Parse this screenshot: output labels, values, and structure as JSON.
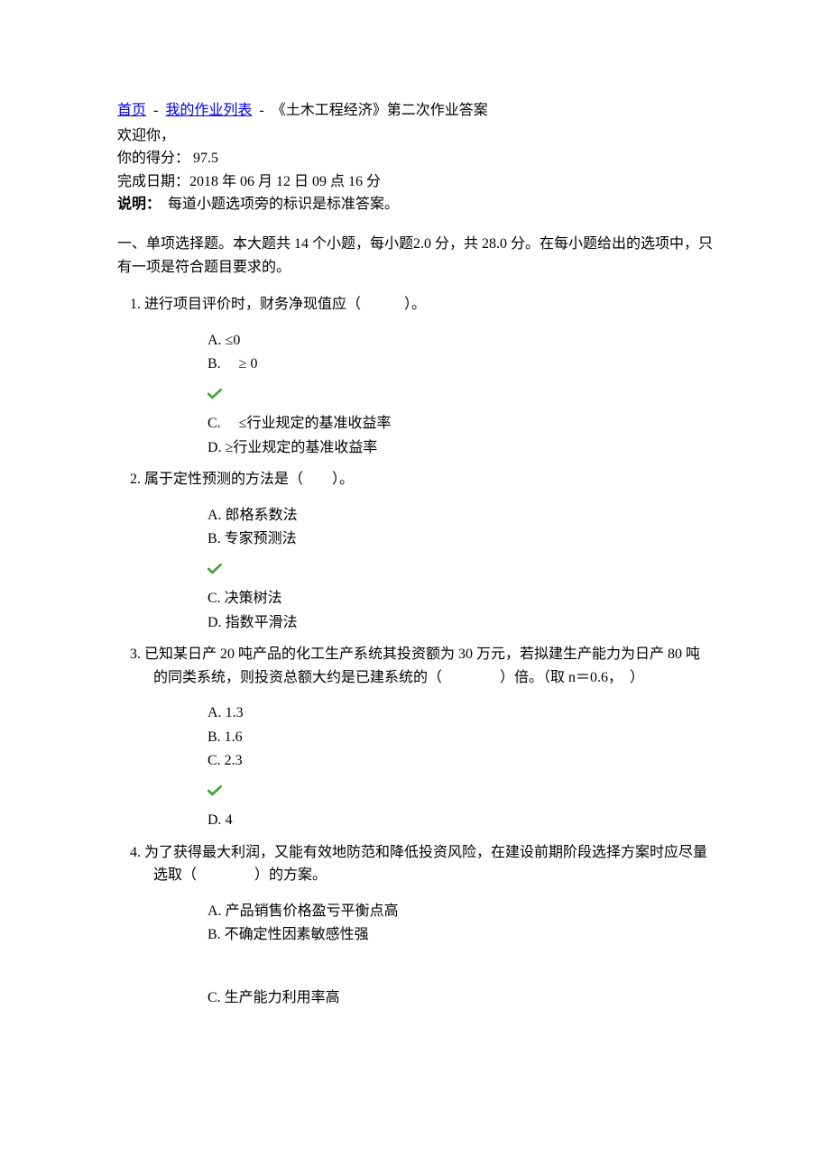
{
  "breadcrumb": {
    "home": "首页",
    "list": "我的作业列表",
    "current": "《土木工程经济》第二次作业答案",
    "sep": "-"
  },
  "header": {
    "welcome": "欢迎你，",
    "score_label": "你的得分：",
    "score_value": "97.5",
    "date_label": "完成日期：",
    "date_value": "2018 年 06 月 12 日 09 点 16 分",
    "note_label": "说明：",
    "note_text": "每道小题选项旁的标识是标准答案。"
  },
  "section": {
    "intro": "一、单项选择题。本大题共 14 个小题，每小题2.0 分，共 28.0 分。在每小题给出的选项中，只有一项是符合题目要求的。"
  },
  "colors": {
    "link": "#0000EE",
    "text": "#000000",
    "check": "#3fa535",
    "background": "#ffffff"
  },
  "questions": [
    {
      "num": "1.",
      "text": "进行项目评价时，财务净现值应（　　　）。",
      "options_before": [
        {
          "label": "A.",
          "text": "≤0"
        },
        {
          "label": "B.",
          "text": " ≥ 0"
        }
      ],
      "correct_after_index": 1,
      "options_after": [
        {
          "label": "C.",
          "text": " ≤行业规定的基准收益率"
        },
        {
          "label": "D.",
          "text": "≥行业规定的基准收益率"
        }
      ]
    },
    {
      "num": "2.",
      "text": "属于定性预测的方法是（　　）。",
      "options_before": [
        {
          "label": "A.",
          "text": "郎格系数法"
        },
        {
          "label": "B.",
          "text": "专家预测法"
        }
      ],
      "correct_after_index": 1,
      "options_after": [
        {
          "label": "C.",
          "text": "决策树法"
        },
        {
          "label": "D.",
          "text": "指数平滑法"
        }
      ]
    },
    {
      "num": "3.",
      "text": "已知某日产 20 吨产品的化工生产系统其投资额为 30 万元，若拟建生产能力为日产 80 吨的同类系统，则投资总额大约是已建系统的（　　　　）倍。（取 n＝0.6， ）",
      "options_before": [
        {
          "label": "A.",
          "text": "1.3"
        },
        {
          "label": "B.",
          "text": "1.6"
        },
        {
          "label": "C.",
          "text": "2.3"
        }
      ],
      "correct_after_index": 2,
      "options_after": [
        {
          "label": "D.",
          "text": "4"
        }
      ]
    },
    {
      "num": "4.",
      "text": "为了获得最大利润，又能有效地防范和降低投资风险，在建设前期阶段选择方案时应尽量选取（　　　　）的方案。",
      "options_before": [
        {
          "label": "A.",
          "text": "产品销售价格盈亏平衡点高"
        },
        {
          "label": "B.",
          "text": "不确定性因素敏感性强"
        }
      ],
      "correct_after_index": null,
      "options_after": [
        {
          "label": "C.",
          "text": "生产能力利用率高"
        }
      ],
      "gap_before_after": true
    }
  ]
}
